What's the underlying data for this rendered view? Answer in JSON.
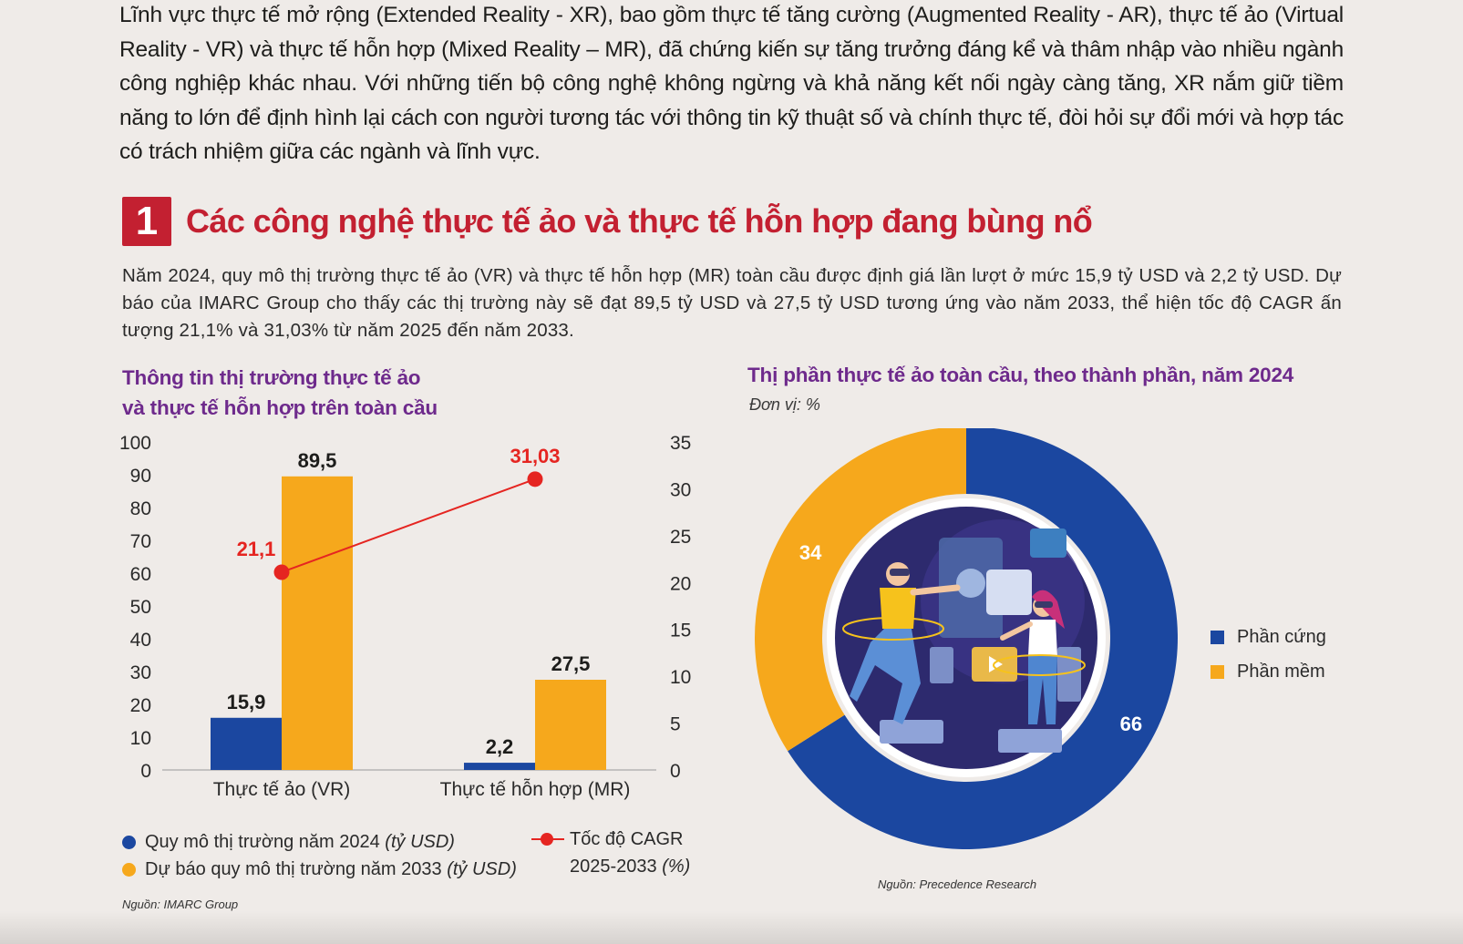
{
  "intro": "Lĩnh vực thực tế mở rộng (Extended Reality - XR), bao gồm thực tế tăng cường (Augmented Reality - AR), thực tế ảo (Virtual Reality - VR) và thực tế hỗn hợp (Mixed Reality – MR), đã chứng kiến sự tăng trưởng đáng kể và thâm nhập vào nhiều ngành công nghiệp khác nhau. Với những tiến bộ công nghệ không ngừng và khả năng kết nối ngày càng tăng, XR nắm giữ tiềm năng to lớn để định hình lại cách con người tương tác với thông tin kỹ thuật số và chính thực tế, đòi hỏi sự đổi mới và hợp tác có trách nhiệm giữa các ngành và lĩnh vực.",
  "section": {
    "number": "1",
    "title": "Các công nghệ thực tế ảo và thực tế hỗn hợp đang bùng nổ",
    "summary": "Năm 2024, quy mô thị trường thực tế ảo (VR) và thực tế hỗn hợp (MR) toàn cầu được định giá lần lượt ở mức 15,9 tỷ USD và 2,2 tỷ USD. Dự báo của IMARC Group cho thấy các thị trường này sẽ đạt 89,5 tỷ USD và 27,5 tỷ USD tương ứng vào năm 2033, thể hiện tốc độ CAGR ấn tượng 21,1% và 31,03% từ năm 2025 đến năm 2033."
  },
  "colors": {
    "red": "#c32031",
    "purple": "#6e2a8c",
    "blue": "#1b47a0",
    "orange": "#f6a81c",
    "line": "#e52521"
  },
  "chart_data": [
    {
      "type": "bar",
      "title_line1": "Thông tin thị trường thực tế ảo",
      "title_line2": "và thực tế hỗn hợp trên toàn cầu",
      "categories": [
        "Thực tế ảo (VR)",
        "Thực tế hỗn hợp (MR)"
      ],
      "series": [
        {
          "name": "Quy mô thị trường năm 2024",
          "unit": "(tỷ USD)",
          "values": [
            15.9,
            2.2
          ],
          "labels": [
            "15,9",
            "2,2"
          ]
        },
        {
          "name": "Dự báo quy mô thị trường năm 2033",
          "unit": "(tỷ USD)",
          "values": [
            89.5,
            27.5
          ],
          "labels": [
            "89,5",
            "27,5"
          ]
        }
      ],
      "line_series": {
        "name": "Tốc độ CAGR",
        "name_line2": "2025-2033",
        "unit": "(%)",
        "values": [
          21.1,
          31.03
        ],
        "labels": [
          "21,1",
          "31,03"
        ]
      },
      "y_left": {
        "min": 0,
        "max": 100,
        "ticks": [
          "0",
          "10",
          "20",
          "30",
          "40",
          "50",
          "60",
          "70",
          "80",
          "90",
          "100"
        ]
      },
      "y_right": {
        "min": 0,
        "max": 35,
        "ticks": [
          "0",
          "5",
          "10",
          "15",
          "20",
          "25",
          "30",
          "35"
        ]
      },
      "source": "Nguồn: IMARC Group"
    },
    {
      "type": "pie",
      "title": "Thị phần thực tế ảo toàn cầu, theo thành phần, năm 2024",
      "unit": "Đơn vị: %",
      "slices": [
        {
          "name": "Phần cứng",
          "value": 66,
          "label": "66"
        },
        {
          "name": "Phần mềm",
          "value": 34,
          "label": "34"
        }
      ],
      "source": "Nguồn: Precedence Research"
    }
  ]
}
